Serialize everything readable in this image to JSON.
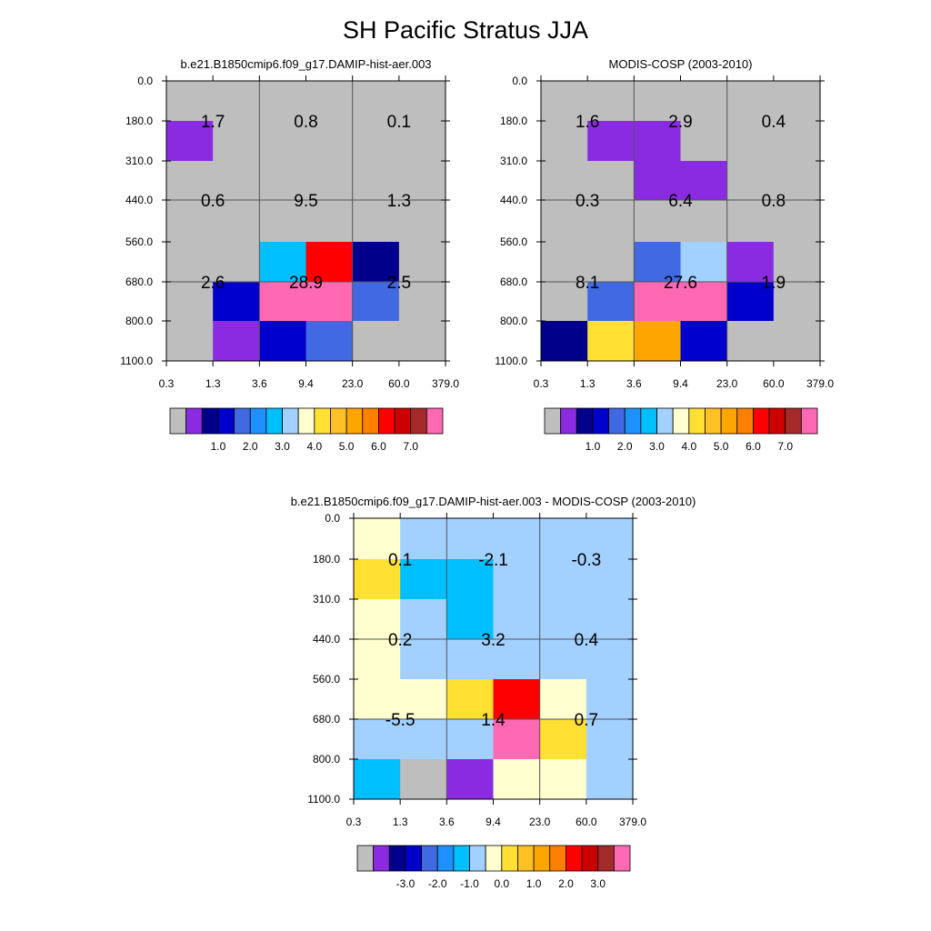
{
  "title": "SH Pacific Stratus JJA",
  "colors": {
    "missing": "#bebebe",
    "palette": [
      "#bebebe",
      "#8a2be2",
      "#00008b",
      "#0000cd",
      "#4169e1",
      "#1e90ff",
      "#00bfff",
      "#a2d1ff",
      "#ffffd0",
      "#ffe033",
      "#ffc125",
      "#ffa500",
      "#ff7f00",
      "#ff0000",
      "#cd0000",
      "#a52a2a",
      "#ff69b4"
    ]
  },
  "chart_data": [
    {
      "type": "heatmap",
      "title": "b.e21.B1850cmip6.f09_g17.DAMIP-hist-aer.003",
      "x_ticks": [
        "0.3",
        "1.3",
        "3.6",
        "9.4",
        "23.0",
        "60.0",
        "379.0"
      ],
      "y_ticks": [
        "0.0",
        "180.0",
        "310.0",
        "440.0",
        "560.0",
        "680.0",
        "800.0",
        "1100.0"
      ],
      "cells": [
        [
          0,
          0,
          0,
          0,
          0,
          0
        ],
        [
          1,
          0,
          0,
          0,
          0,
          0
        ],
        [
          0,
          0,
          0,
          0,
          0,
          0
        ],
        [
          0,
          0,
          0,
          0,
          0,
          0
        ],
        [
          0,
          0,
          6,
          13,
          2,
          0
        ],
        [
          0,
          3,
          16,
          16,
          4,
          0
        ],
        [
          0,
          1,
          3,
          4,
          0,
          0
        ]
      ],
      "group_values": [
        [
          "1.7",
          "0.8",
          "0.1"
        ],
        [
          "0.6",
          "9.5",
          "1.3"
        ],
        [
          "2.6",
          "28.9",
          "2.5"
        ]
      ],
      "colorbar_labels": [
        "1.0",
        "2.0",
        "3.0",
        "4.0",
        "5.0",
        "6.0",
        "7.0"
      ]
    },
    {
      "type": "heatmap",
      "title": "MODIS-COSP (2003-2010)",
      "x_ticks": [
        "0.3",
        "1.3",
        "3.6",
        "9.4",
        "23.0",
        "60.0",
        "379.0"
      ],
      "y_ticks": [
        "0.0",
        "180.0",
        "310.0",
        "440.0",
        "560.0",
        "680.0",
        "800.0",
        "1100.0"
      ],
      "cells": [
        [
          0,
          0,
          0,
          0,
          0,
          0
        ],
        [
          0,
          1,
          1,
          0,
          0,
          0
        ],
        [
          0,
          0,
          1,
          1,
          0,
          0
        ],
        [
          0,
          0,
          0,
          0,
          0,
          0
        ],
        [
          0,
          0,
          4,
          7,
          1,
          0
        ],
        [
          0,
          4,
          16,
          16,
          3,
          0
        ],
        [
          2,
          9,
          11,
          3,
          0,
          0
        ]
      ],
      "group_values": [
        [
          "1.6",
          "2.9",
          "0.4"
        ],
        [
          "0.3",
          "6.4",
          "0.8"
        ],
        [
          "8.1",
          "27.6",
          "1.9"
        ]
      ],
      "colorbar_labels": [
        "1.0",
        "2.0",
        "3.0",
        "4.0",
        "5.0",
        "6.0",
        "7.0"
      ]
    },
    {
      "type": "heatmap",
      "title": "b.e21.B1850cmip6.f09_g17.DAMIP-hist-aer.003 - MODIS-COSP (2003-2010)",
      "x_ticks": [
        "0.3",
        "1.3",
        "3.6",
        "9.4",
        "23.0",
        "60.0",
        "379.0"
      ],
      "y_ticks": [
        "0.0",
        "180.0",
        "310.0",
        "440.0",
        "560.0",
        "680.0",
        "800.0",
        "1100.0"
      ],
      "cells": [
        [
          8,
          7,
          7,
          7,
          7,
          7
        ],
        [
          9,
          6,
          6,
          7,
          7,
          7
        ],
        [
          8,
          7,
          6,
          7,
          7,
          7
        ],
        [
          8,
          7,
          7,
          7,
          7,
          7
        ],
        [
          8,
          8,
          9,
          13,
          8,
          7
        ],
        [
          7,
          7,
          7,
          16,
          9,
          7
        ],
        [
          6,
          0,
          1,
          8,
          8,
          7
        ]
      ],
      "group_values": [
        [
          "0.1",
          "-2.1",
          "-0.3"
        ],
        [
          "0.2",
          "3.2",
          "0.4"
        ],
        [
          "-5.5",
          "1.4",
          "0.7"
        ]
      ],
      "colorbar_labels": [
        "-3.0",
        "-2.0",
        "-1.0",
        "0.0",
        "1.0",
        "2.0",
        "3.0"
      ]
    }
  ]
}
